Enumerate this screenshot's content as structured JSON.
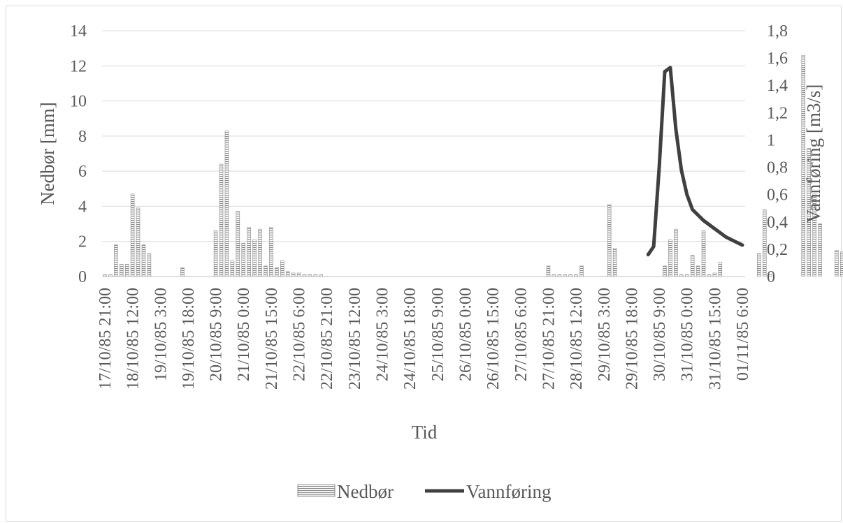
{
  "chart_data": {
    "type": "bar",
    "xlabel": "Tid",
    "ylabel_left": "Nedbør [mm]",
    "ylabel_right": "Vannføring [m3/s]",
    "ylim_left": [
      0,
      14
    ],
    "ylim_right": [
      0,
      1.8
    ],
    "grid": "horizontal",
    "legend_position": "bottom",
    "y_ticks_left": [
      "0",
      "2",
      "4",
      "6",
      "8",
      "10",
      "12",
      "14"
    ],
    "y_ticks_right": [
      "0",
      "0,2",
      "0,4",
      "0,6",
      "0,8",
      "1",
      "1,2",
      "1,4",
      "1,6",
      "1,8"
    ],
    "x_tick_labels": [
      "17/10/85 21:00",
      "18/10/85 12:00",
      "19/10/85 3:00",
      "19/10/85 18:00",
      "20/10/85 9:00",
      "21/10/85 0:00",
      "21/10/85 15:00",
      "22/10/85 6:00",
      "22/10/85 21:00",
      "23/10/85 12:00",
      "24/10/85 3:00",
      "24/10/85 18:00",
      "25/10/85 9:00",
      "26/10/85 0:00",
      "26/10/85 15:00",
      "27/10/85 6:00",
      "27/10/85 21:00",
      "28/10/85 12:00",
      "29/10/85 3:00",
      "29/10/85 18:00",
      "30/10/85 9:00",
      "31/10/85 0:00",
      "31/10/85 15:00",
      "01/11/85 6:00"
    ],
    "time_axis": {
      "start": "17/10/85 21:00",
      "end": "01/11/85 6:00",
      "step_hours": 3
    },
    "series": [
      {
        "name": "Nedbør",
        "kind": "bar",
        "axis": "left",
        "values": [
          0.1,
          0.1,
          1.8,
          0.7,
          0.7,
          4.7,
          3.9,
          1.8,
          1.3,
          0,
          0,
          0,
          0,
          0,
          0.5,
          0,
          0,
          0,
          0,
          0,
          2.6,
          6.4,
          8.3,
          0.9,
          3.7,
          1.9,
          2.8,
          2.1,
          2.7,
          0.6,
          2.8,
          0.5,
          0.9,
          0.3,
          0.2,
          0.2,
          0.1,
          0.1,
          0.1,
          0.1,
          0,
          0,
          0,
          0,
          0,
          0,
          0,
          0,
          0,
          0,
          0,
          0,
          0,
          0,
          0,
          0,
          0,
          0,
          0,
          0,
          0,
          0,
          0,
          0,
          0,
          0,
          0,
          0,
          0,
          0,
          0,
          0,
          0,
          0,
          0,
          0,
          0,
          0,
          0,
          0,
          0.6,
          0.1,
          0.1,
          0.1,
          0.1,
          0.1,
          0.6,
          0,
          0,
          0,
          0,
          4.1,
          1.6,
          0,
          0,
          0,
          0,
          0,
          0,
          0,
          0,
          0.6,
          2.1,
          2.7,
          0.1,
          0.1,
          1.2,
          0.6,
          2.6,
          0.1,
          0.2,
          0.8,
          0,
          0,
          0,
          0,
          0,
          0,
          1.3,
          3.8,
          0.1,
          0,
          0,
          0,
          0,
          0,
          12.6,
          7.3,
          4.7,
          3.0,
          0,
          0,
          1.5,
          1.4,
          1.8,
          0.5,
          0,
          0,
          1.8,
          0,
          0,
          0,
          0,
          0,
          0,
          0,
          0,
          0
        ]
      },
      {
        "name": "Vannføring",
        "kind": "line",
        "axis": "right",
        "color": "#404040",
        "points": [
          {
            "x": "30/10/85 3:00",
            "y": 0.16
          },
          {
            "x": "30/10/85 6:00",
            "y": 0.22
          },
          {
            "x": "30/10/85 9:00",
            "y": 0.8
          },
          {
            "x": "30/10/85 12:00",
            "y": 1.5
          },
          {
            "x": "30/10/85 15:00",
            "y": 1.53
          },
          {
            "x": "30/10/85 18:00",
            "y": 1.08
          },
          {
            "x": "30/10/85 21:00",
            "y": 0.78
          },
          {
            "x": "31/10/85 0:00",
            "y": 0.6
          },
          {
            "x": "31/10/85 3:00",
            "y": 0.49
          },
          {
            "x": "31/10/85 6:00",
            "y": 0.45
          },
          {
            "x": "31/10/85 9:00",
            "y": 0.41
          },
          {
            "x": "31/10/85 12:00",
            "y": 0.38
          },
          {
            "x": "31/10/85 15:00",
            "y": 0.35
          },
          {
            "x": "31/10/85 18:00",
            "y": 0.32
          },
          {
            "x": "31/10/85 21:00",
            "y": 0.29
          },
          {
            "x": "01/11/85 0:00",
            "y": 0.27
          },
          {
            "x": "01/11/85 3:00",
            "y": 0.25
          },
          {
            "x": "01/11/85 6:00",
            "y": 0.23
          }
        ]
      }
    ]
  },
  "legend": {
    "bar_label": "Nedbør",
    "line_label": "Vannføring"
  }
}
